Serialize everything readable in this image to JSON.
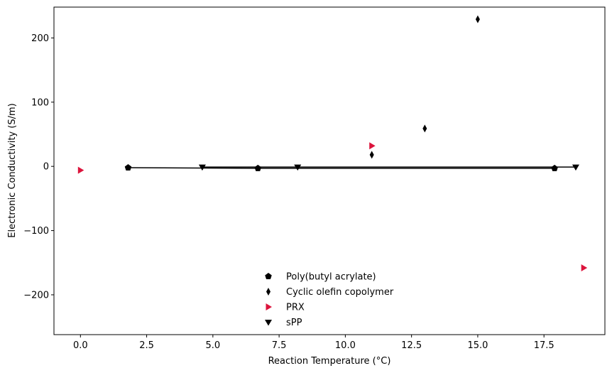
{
  "chart_data": {
    "type": "scatter",
    "title": "",
    "xlabel": "Reaction Temperature (°C)",
    "ylabel": "Electronic Conductivity (S/m)",
    "xlim": [
      -1,
      19.8
    ],
    "ylim": [
      -262,
      248
    ],
    "xticks": [
      0,
      2.5,
      5,
      7.5,
      10,
      12.5,
      15,
      17.5
    ],
    "xtick_labels": [
      "0.0",
      "2.5",
      "5.0",
      "7.5",
      "10.0",
      "12.5",
      "15.0",
      "17.5"
    ],
    "yticks": [
      -200,
      -100,
      0,
      100,
      200
    ],
    "ytick_labels": [
      "−200",
      "−100",
      "0",
      "100",
      "200"
    ],
    "grid": false,
    "legend_position": "lower-center",
    "series": [
      {
        "name": "Poly(butyl acrylate)",
        "marker": "pentagon",
        "color": "#000000",
        "points": [
          [
            1.8,
            -2
          ],
          [
            6.7,
            -3
          ],
          [
            17.9,
            -3
          ]
        ],
        "line": true
      },
      {
        "name": "Cyclic olefin copolymer",
        "marker": "thin-diamond",
        "color": "#000000",
        "points": [
          [
            11.0,
            18
          ],
          [
            13.0,
            59
          ],
          [
            15.0,
            229
          ]
        ],
        "line": false
      },
      {
        "name": "PRX",
        "marker": "triangle-right",
        "color": "#dc143c",
        "points": [
          [
            0.0,
            -6
          ],
          [
            11.0,
            32
          ],
          [
            19.0,
            -158
          ]
        ],
        "line": false
      },
      {
        "name": "sPP",
        "marker": "triangle-down",
        "color": "#000000",
        "points": [
          [
            4.6,
            -1
          ],
          [
            8.2,
            -1
          ],
          [
            18.7,
            -1
          ]
        ],
        "line": true
      }
    ]
  }
}
